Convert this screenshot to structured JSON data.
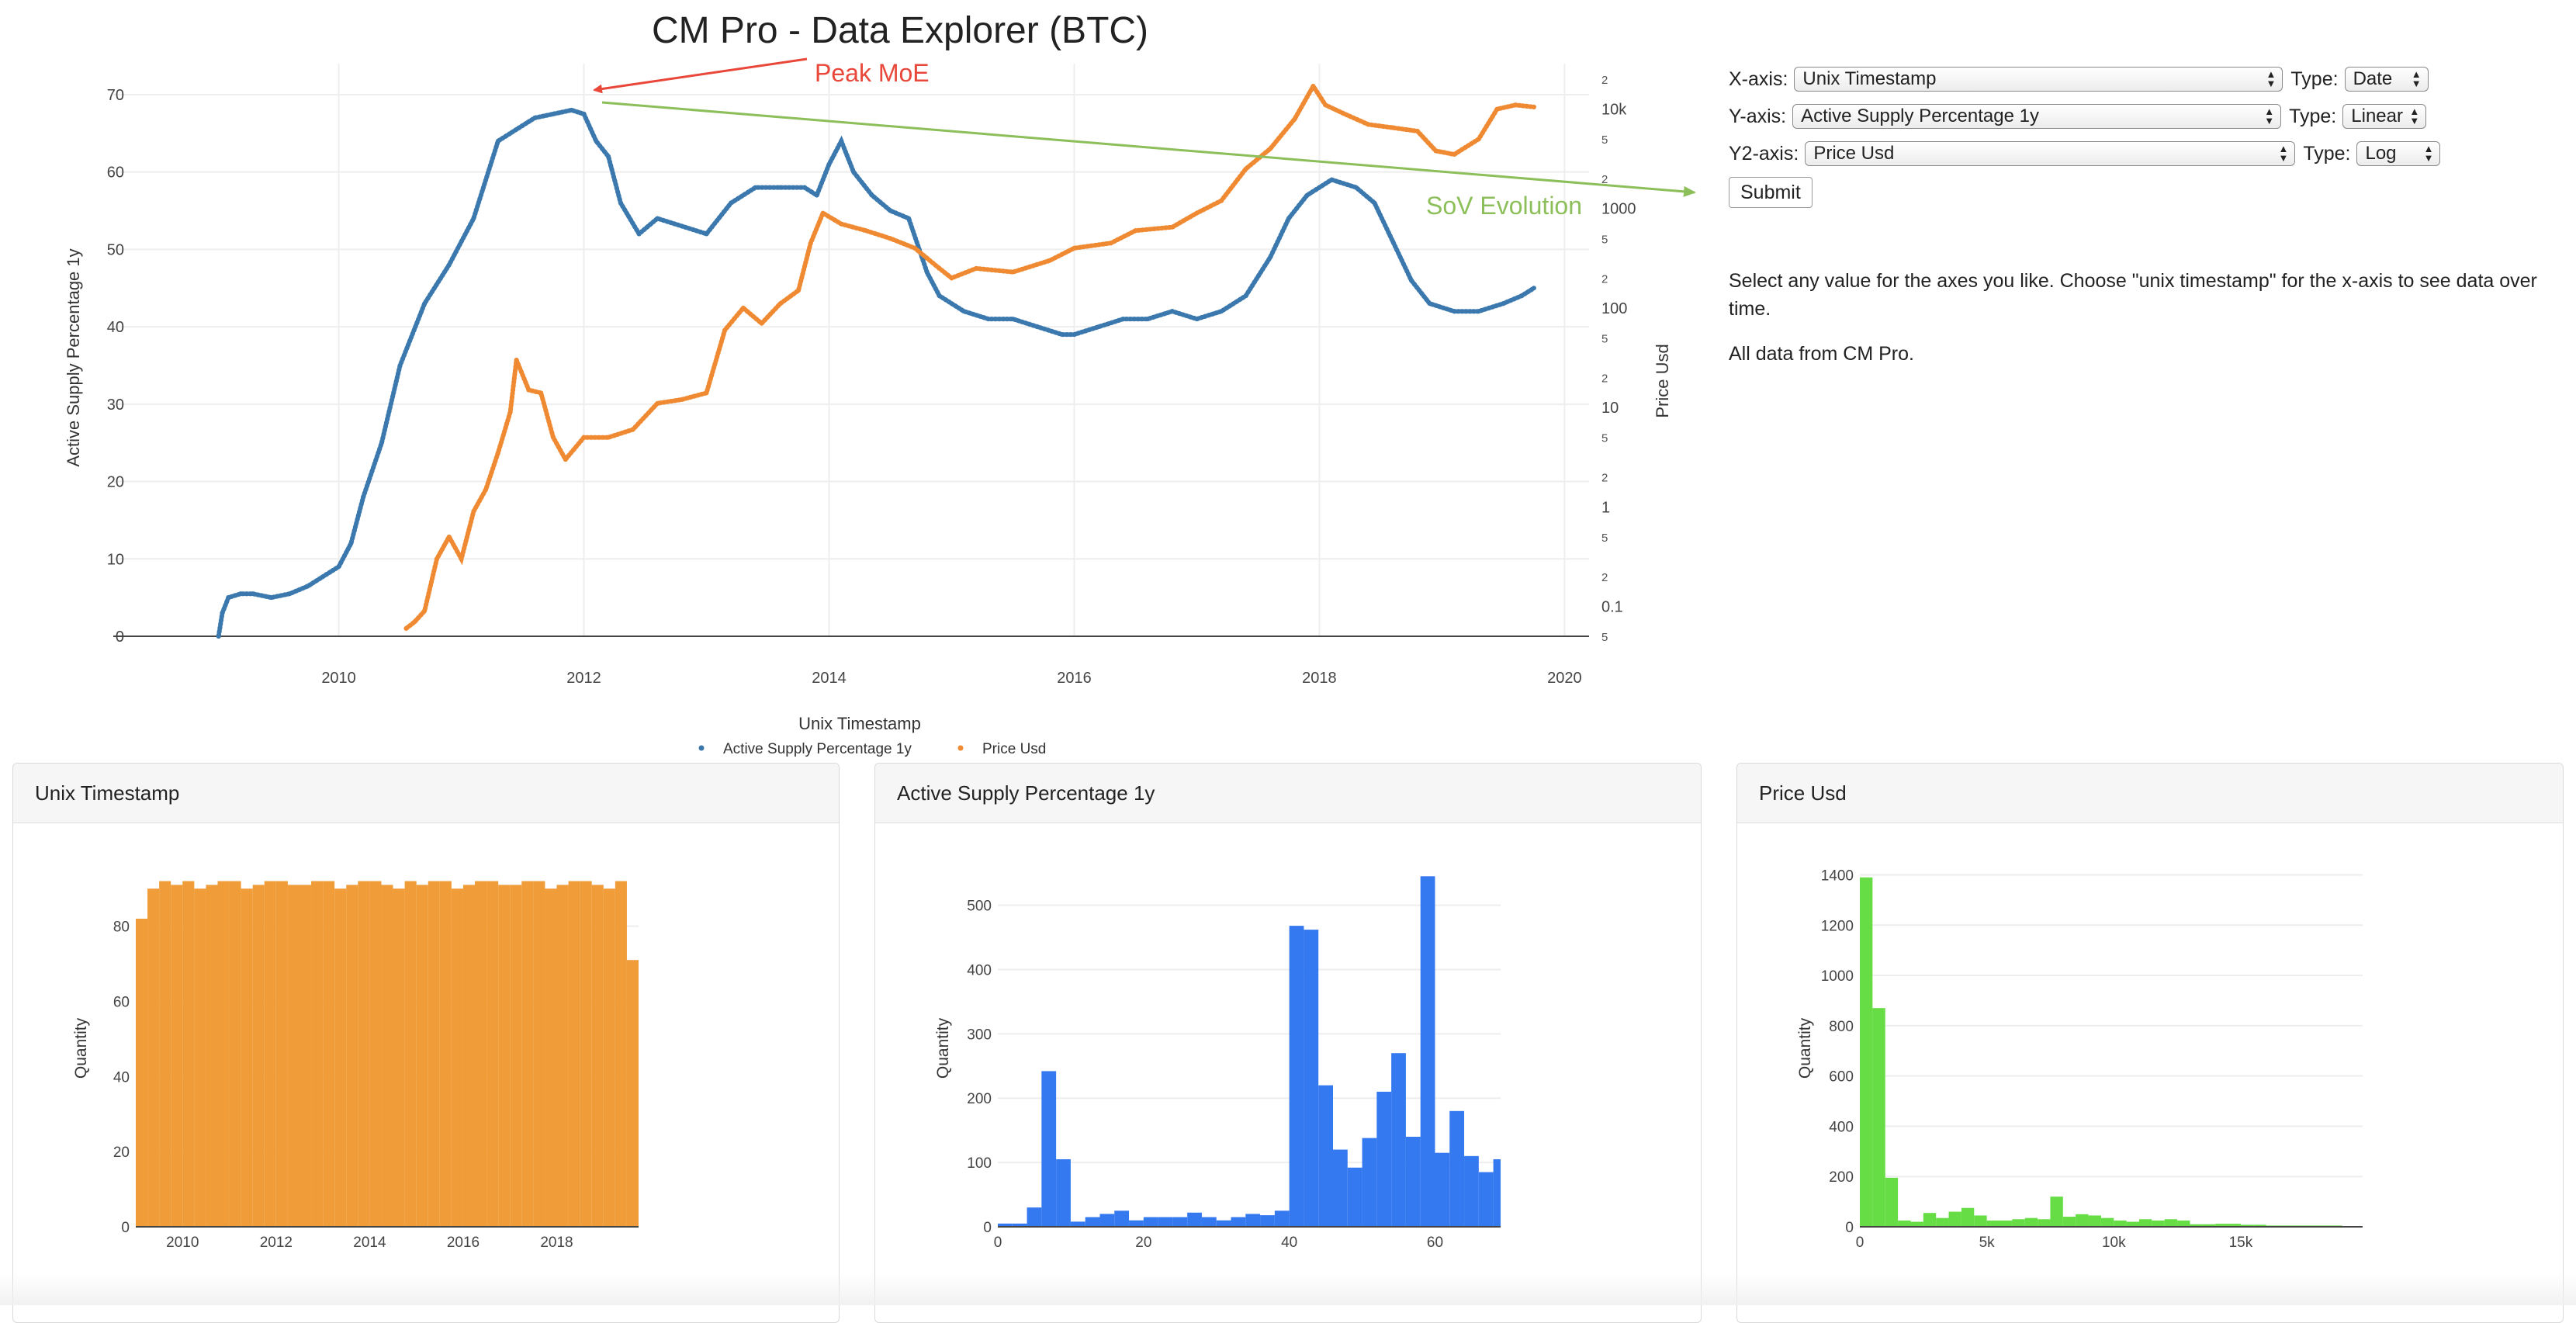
{
  "title": "CM Pro - Data Explorer (BTC)",
  "controls": {
    "x_label": "X-axis:",
    "x_value": "Unix Timestamp",
    "x_type_label": "Type:",
    "x_type": "Date",
    "y_label": "Y-axis:",
    "y_value": "Active Supply Percentage 1y",
    "y_type_label": "Type:",
    "y_type": "Linear",
    "y2_label": "Y2-axis:",
    "y2_value": "Price Usd",
    "y2_type_label": "Type:",
    "y2_type": "Log",
    "submit": "Submit",
    "info": "Select any value for the axes you like. Choose \"unix timestamp\" for the x-axis to see data over time.",
    "credit": "All data from CM Pro."
  },
  "colors": {
    "blue": "#3a78ad",
    "orange": "#ef8a32",
    "annotation_red": "#e8473a",
    "annotation_green": "#9dd36b",
    "hist_orange": "#f09c38",
    "hist_blue": "#3579f0",
    "hist_green": "#66dd44"
  },
  "chart_data": [
    {
      "type": "scatter",
      "xlabel": "Unix Timestamp",
      "ylabel": "Active Supply Percentage 1y",
      "y2label": "Price Usd",
      "xlim": [
        2008.3,
        2020.2
      ],
      "ylim": [
        0,
        72
      ],
      "y2scale": "log",
      "y2lim": [
        0.05,
        20000
      ],
      "x_ticks": [
        "2010",
        "2012",
        "2014",
        "2016",
        "2018",
        "2020"
      ],
      "x_tick_values": [
        2010,
        2012,
        2014,
        2016,
        2018,
        2020
      ],
      "y_ticks": [
        0,
        10,
        20,
        30,
        40,
        50,
        60,
        70
      ],
      "y2_major_ticks": [
        {
          "v": 0.1,
          "label": "0.1"
        },
        {
          "v": 1,
          "label": "1"
        },
        {
          "v": 10,
          "label": "10"
        },
        {
          "v": 100,
          "label": "100"
        },
        {
          "v": 1000,
          "label": "1000"
        },
        {
          "v": 10000,
          "label": "10k"
        }
      ],
      "y2_minor_ticks": [
        {
          "v": 0.05,
          "label": "5"
        },
        {
          "v": 0.2,
          "label": "2"
        },
        {
          "v": 0.5,
          "label": "5"
        },
        {
          "v": 2,
          "label": "2"
        },
        {
          "v": 5,
          "label": "5"
        },
        {
          "v": 20,
          "label": "2"
        },
        {
          "v": 50,
          "label": "5"
        },
        {
          "v": 200,
          "label": "2"
        },
        {
          "v": 500,
          "label": "5"
        },
        {
          "v": 2000,
          "label": "2"
        },
        {
          "v": 5000,
          "label": "5"
        },
        {
          "v": 20000,
          "label": "2"
        }
      ],
      "grid": true,
      "legend_position": "bottom-center",
      "series": [
        {
          "name": "Active Supply Percentage 1y",
          "axis": "y",
          "color": "#3a78ad",
          "x": [
            2009.02,
            2009.05,
            2009.1,
            2009.2,
            2009.3,
            2009.45,
            2009.6,
            2009.75,
            2009.9,
            2010.0,
            2010.1,
            2010.2,
            2010.35,
            2010.5,
            2010.7,
            2010.9,
            2011.1,
            2011.3,
            2011.5,
            2011.6,
            2011.75,
            2011.9,
            2012.0,
            2012.1,
            2012.2,
            2012.3,
            2012.45,
            2012.6,
            2012.8,
            2013.0,
            2013.2,
            2013.4,
            2013.6,
            2013.8,
            2013.9,
            2014.0,
            2014.1,
            2014.2,
            2014.35,
            2014.5,
            2014.65,
            2014.8,
            2014.9,
            2015.1,
            2015.3,
            2015.5,
            2015.7,
            2015.9,
            2016.0,
            2016.2,
            2016.4,
            2016.6,
            2016.8,
            2017.0,
            2017.2,
            2017.4,
            2017.6,
            2017.75,
            2017.9,
            2018.1,
            2018.3,
            2018.45,
            2018.6,
            2018.75,
            2018.9,
            2019.1,
            2019.3,
            2019.5,
            2019.65,
            2019.75
          ],
          "y": [
            0,
            3,
            5,
            5.5,
            5.5,
            5,
            5.5,
            6.5,
            8,
            9,
            12,
            18,
            25,
            35,
            43,
            48,
            54,
            64,
            66,
            67,
            67.5,
            68,
            67.5,
            64,
            62,
            56,
            52,
            54,
            53,
            52,
            56,
            58,
            58,
            58,
            57,
            61,
            64,
            60,
            57,
            55,
            54,
            47,
            44,
            42,
            41,
            41,
            40,
            39,
            39,
            40,
            41,
            41,
            42,
            41,
            42,
            44,
            49,
            54,
            57,
            59,
            58,
            56,
            51,
            46,
            43,
            42,
            42,
            43,
            44,
            45
          ]
        },
        {
          "name": "Price Usd",
          "axis": "y2",
          "color": "#ef8a32",
          "x": [
            2010.55,
            2010.62,
            2010.7,
            2010.8,
            2010.9,
            2011.0,
            2011.1,
            2011.2,
            2011.3,
            2011.4,
            2011.45,
            2011.55,
            2011.65,
            2011.75,
            2011.85,
            2012.0,
            2012.2,
            2012.4,
            2012.6,
            2012.8,
            2013.0,
            2013.15,
            2013.3,
            2013.45,
            2013.6,
            2013.75,
            2013.85,
            2013.95,
            2014.1,
            2014.3,
            2014.5,
            2014.7,
            2014.9,
            2015.0,
            2015.2,
            2015.5,
            2015.8,
            2016.0,
            2016.3,
            2016.5,
            2016.8,
            2017.0,
            2017.2,
            2017.4,
            2017.6,
            2017.8,
            2017.95,
            2018.05,
            2018.2,
            2018.4,
            2018.6,
            2018.8,
            2018.95,
            2019.1,
            2019.3,
            2019.45,
            2019.6,
            2019.75
          ],
          "y": [
            0.06,
            0.07,
            0.09,
            0.3,
            0.5,
            0.3,
            0.9,
            1.5,
            3.5,
            9,
            30,
            15,
            14,
            5,
            3,
            5,
            5,
            6,
            11,
            12,
            14,
            60,
            100,
            70,
            110,
            150,
            450,
            900,
            700,
            600,
            500,
            400,
            250,
            200,
            250,
            230,
            300,
            400,
            450,
            600,
            650,
            900,
            1200,
            2500,
            4000,
            8000,
            17000,
            11000,
            9000,
            7000,
            6500,
            6000,
            3800,
            3500,
            5000,
            10000,
            11000,
            10500
          ]
        }
      ],
      "annotations": [
        {
          "text": "Peak MoE",
          "color": "#e8473a"
        },
        {
          "text": "SoV Evolution",
          "color": "#8cbf5a"
        }
      ]
    },
    {
      "type": "bar",
      "title": "Unix Timestamp",
      "ylabel": "Quantity",
      "ylim": [
        0,
        95
      ],
      "x_ticks": [
        "2010",
        "2012",
        "2014",
        "2016",
        "2018"
      ],
      "x_tick_values": [
        2010,
        2012,
        2014,
        2016,
        2018
      ],
      "xlim": [
        2009.0,
        2019.75
      ],
      "y_ticks": [
        0,
        20,
        40,
        60,
        80
      ],
      "color": "#f09c38",
      "bin_start": 2009.0,
      "bin_width": 0.25,
      "values": [
        82,
        90,
        92,
        91,
        92,
        90,
        91,
        92,
        92,
        90,
        91,
        92,
        92,
        91,
        91,
        92,
        92,
        90,
        91,
        92,
        92,
        91,
        90,
        92,
        91,
        92,
        92,
        90,
        91,
        92,
        92,
        91,
        91,
        92,
        92,
        90,
        91,
        92,
        92,
        91,
        90,
        92,
        71
      ]
    },
    {
      "type": "bar",
      "title": "Active Supply Percentage 1y",
      "ylabel": "Quantity",
      "ylim": [
        0,
        555
      ],
      "x_ticks": [
        "0",
        "20",
        "40",
        "60"
      ],
      "x_tick_values": [
        0,
        20,
        40,
        60
      ],
      "xlim": [
        0,
        69
      ],
      "y_ticks": [
        0,
        100,
        200,
        300,
        400,
        500
      ],
      "color": "#3579f0",
      "bin_start": 0,
      "bin_width": 2,
      "values": [
        5,
        5,
        30,
        242,
        105,
        8,
        15,
        20,
        25,
        10,
        15,
        15,
        15,
        22,
        15,
        10,
        15,
        20,
        18,
        25,
        468,
        462,
        220,
        120,
        92,
        138,
        210,
        270,
        140,
        545,
        115,
        180,
        110,
        85,
        105
      ]
    },
    {
      "type": "bar",
      "title": "Price Usd",
      "ylabel": "Quantity",
      "ylim": [
        0,
        1420
      ],
      "x_ticks": [
        "0",
        "5k",
        "10k",
        "15k"
      ],
      "x_tick_values": [
        0,
        5000,
        10000,
        15000
      ],
      "xlim": [
        0,
        19800
      ],
      "y_ticks": [
        0,
        200,
        400,
        600,
        800,
        1000,
        1200,
        1400
      ],
      "color": "#66dd44",
      "bin_start": 0,
      "bin_width": 500,
      "values": [
        1390,
        870,
        195,
        25,
        20,
        55,
        35,
        60,
        75,
        45,
        25,
        25,
        30,
        35,
        30,
        120,
        40,
        50,
        45,
        35,
        25,
        20,
        30,
        25,
        30,
        25,
        10,
        10,
        12,
        12,
        8,
        8,
        5,
        5,
        5,
        5,
        5,
        5,
        3,
        3
      ]
    }
  ]
}
